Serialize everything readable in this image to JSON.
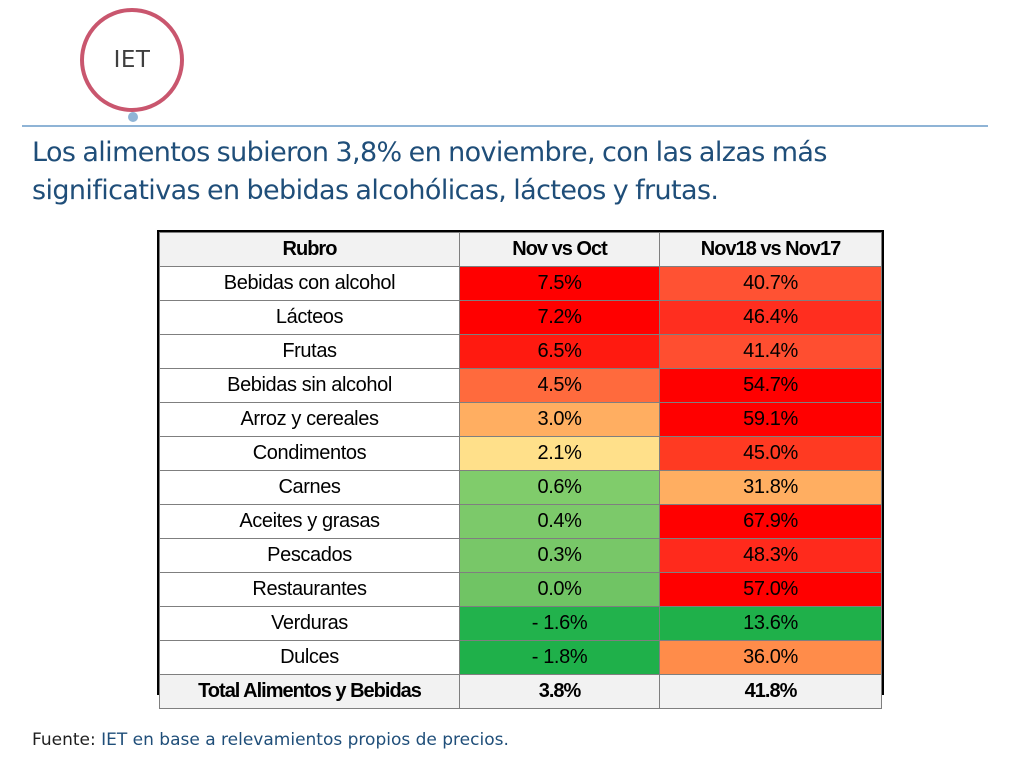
{
  "logo": {
    "text": "IET",
    "ring_color": "#c9566e",
    "dot_color": "#8fb4d6"
  },
  "title": "Los alimentos subieron 3,8% en noviembre, con las alzas más significativas en bebidas alcohólicas, lácteos y frutas.",
  "colors": {
    "title": "#1f4e79",
    "heat_red": "#ff0000",
    "heat_red_orange": "#ff5233",
    "heat_orange": "#ff8c3c",
    "heat_light_orange": "#ffae61",
    "heat_yellow": "#ffe08a",
    "heat_light_green": "#7cc96a",
    "heat_green": "#1fb04a",
    "header_bg": "#f2f2f2"
  },
  "table": {
    "headers": [
      "Rubro",
      "Nov vs Oct",
      "Nov18 vs Nov17"
    ],
    "rows": [
      {
        "rubro": "Bebidas con alcohol",
        "nov_oct": "7.5%",
        "nov18_nov17": "40.7%",
        "c1": "#ff0000",
        "c2": "#ff5233"
      },
      {
        "rubro": "Lácteos",
        "nov_oct": "7.2%",
        "nov18_nov17": "46.4%",
        "c1": "#ff0000",
        "c2": "#ff2e1f"
      },
      {
        "rubro": "Frutas",
        "nov_oct": "6.5%",
        "nov18_nov17": "41.4%",
        "c1": "#ff1a10",
        "c2": "#ff4e30"
      },
      {
        "rubro": "Bebidas sin alcohol",
        "nov_oct": "4.5%",
        "nov18_nov17": "54.7%",
        "c1": "#ff6a3d",
        "c2": "#ff0000"
      },
      {
        "rubro": "Arroz y cereales",
        "nov_oct": "3.0%",
        "nov18_nov17": "59.1%",
        "c1": "#ffae61",
        "c2": "#ff0000"
      },
      {
        "rubro": "Condimentos",
        "nov_oct": "2.1%",
        "nov18_nov17": "45.0%",
        "c1": "#ffe08a",
        "c2": "#ff3a22"
      },
      {
        "rubro": "Carnes",
        "nov_oct": "0.6%",
        "nov18_nov17": "31.8%",
        "c1": "#80cc6b",
        "c2": "#ffae61"
      },
      {
        "rubro": "Aceites y grasas",
        "nov_oct": "0.4%",
        "nov18_nov17": "67.9%",
        "c1": "#7cc96a",
        "c2": "#ff0000"
      },
      {
        "rubro": "Pescados",
        "nov_oct": "0.3%",
        "nov18_nov17": "48.3%",
        "c1": "#78c768",
        "c2": "#ff2a1c"
      },
      {
        "rubro": "Restaurantes",
        "nov_oct": "0.0%",
        "nov18_nov17": "57.0%",
        "c1": "#70c464",
        "c2": "#ff0000"
      },
      {
        "rubro": "Verduras",
        "nov_oct": "- 1.6%",
        "nov18_nov17": "13.6%",
        "c1": "#22b24c",
        "c2": "#1fb04a"
      },
      {
        "rubro": "Dulces",
        "nov_oct": "- 1.8%",
        "nov18_nov17": "36.0%",
        "c1": "#1fb04a",
        "c2": "#ff8c4a"
      }
    ],
    "total": {
      "rubro": "Total Alimentos y Bebidas",
      "nov_oct": "3.8%",
      "nov18_nov17": "41.8%"
    }
  },
  "source": {
    "label": "Fuente:",
    "text": "IET en base a relevamientos propios de precios."
  }
}
